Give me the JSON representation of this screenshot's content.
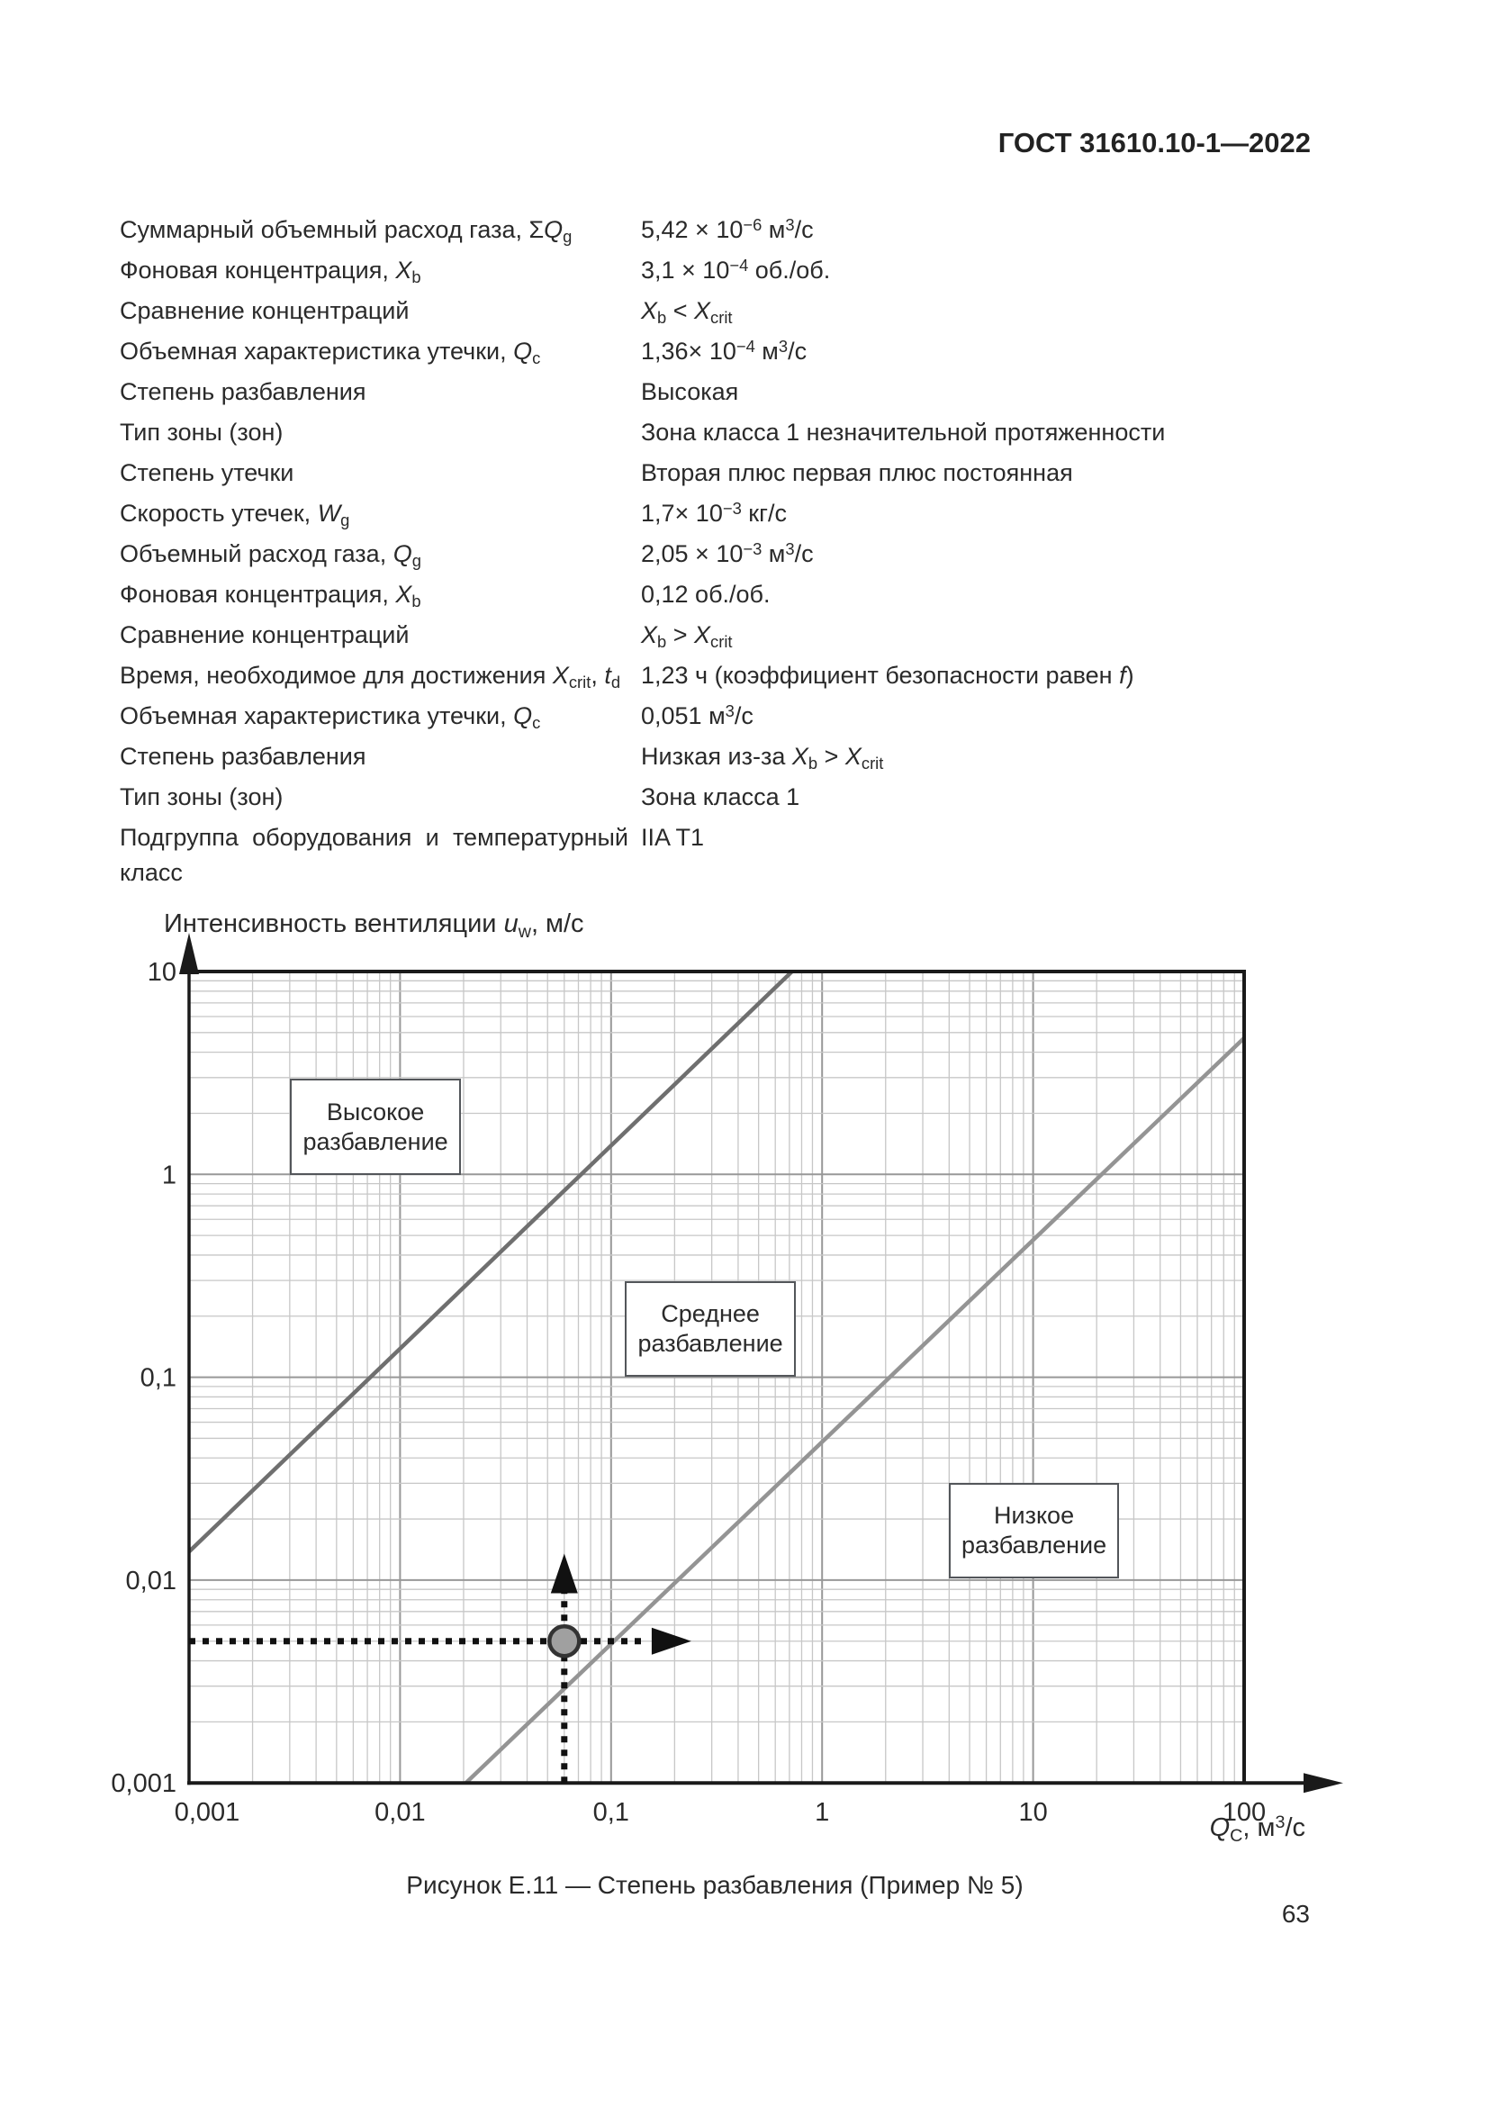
{
  "page": {
    "header": "ГОСТ 31610.10-1—2022",
    "page_number": "63"
  },
  "parameters": [
    {
      "label": "Суммарный объемный расход газа, Σ*Q*_{g}",
      "value": "5,42 × 10^{−6} м^{3}/с"
    },
    {
      "label": "Фоновая концентрация, *X*_{b}",
      "value": "3,1 × 10^{−4} об./об."
    },
    {
      "label": "Сравнение концентраций",
      "value": "*X*_{b} < *X*_{crit}"
    },
    {
      "label": "Объемная характеристика утечки, *Q*_{c}",
      "value": "1,36× 10^{−4} м^{3}/с"
    },
    {
      "label": "Степень разбавления",
      "value": "Высокая"
    },
    {
      "label": "Тип зоны (зон)",
      "value": "Зона класса 1 незначительной протяженности"
    },
    {
      "label": "Степень утечки",
      "value": "Вторая плюс первая плюс постоянная"
    },
    {
      "label": "Скорость утечек, *W*_{g}",
      "value": "1,7× 10^{−3} кг/с"
    },
    {
      "label": "Объемный расход газа, *Q*_{g}",
      "value": "2,05 × 10^{−3} м^{3}/с"
    },
    {
      "label": "Фоновая концентрация, *X*_{b}",
      "value": "0,12 об./об."
    },
    {
      "label": "Сравнение концентраций",
      "value": "*X*_{b} > *X*_{crit}"
    },
    {
      "label": "Время, необходимое для достижения *X*_{crit}, *t*_{d}",
      "value": "1,23 ч (коэффициент безопасности равен *f*)"
    },
    {
      "label": "Объемная характеристика утечки, *Q*_{c}",
      "value": "0,051 м^{3}/с"
    },
    {
      "label": "Степень разбавления",
      "value": "Низкая из-за *X*_{b} > *X*_{crit}"
    },
    {
      "label": "Тип зоны (зон)",
      "value": "Зона класса 1"
    },
    {
      "label": "Подгруппа оборудования и температурный класс",
      "value": "IIA T1"
    }
  ],
  "figure": {
    "caption": "Рисунок Е.11 — Степень разбавления (Пример № 5)",
    "chart_data": {
      "type": "line",
      "scale": "log-log",
      "grid": "on, minor log divisions 2–9 each decade",
      "x_axis": {
        "title": "*Q*_{C}, м^{3}/с",
        "ticks": [
          "0,001",
          "0,01",
          "0,1",
          "1",
          "10",
          "100"
        ],
        "tick_values": [
          0.001,
          0.01,
          0.1,
          1,
          10,
          100
        ],
        "range": [
          0.001,
          100
        ]
      },
      "y_axis": {
        "title": "Интенсивность вентиляции *u*_{w}, м/с",
        "ticks": [
          "10",
          "1",
          "0,1",
          "0,01",
          "0,001"
        ],
        "tick_values": [
          10,
          1,
          0.1,
          0.01,
          0.001
        ],
        "range": [
          0.001,
          10
        ]
      },
      "series": [
        {
          "name": "high-medium-boundary",
          "color": "#6f6f6f",
          "points": [
            [
              0.001,
              0.0138
            ],
            [
              0.72,
              10
            ]
          ]
        },
        {
          "name": "medium-low-boundary",
          "color": "#949494",
          "points": [
            [
              0.0205,
              0.001
            ],
            [
              100,
              4.7
            ]
          ]
        }
      ],
      "zones": [
        {
          "name": "high-dilution",
          "label": "Высокое\nразбавление",
          "rect": {
            "x": [
              0.003,
              0.0195
            ],
            "y": [
              0.99,
              2.95
            ]
          }
        },
        {
          "name": "medium-dilution",
          "label": "Среднее\nразбавление",
          "rect": {
            "x": [
              0.116,
              0.753
            ],
            "y": [
              0.101,
              0.297
            ]
          }
        },
        {
          "name": "low-dilution",
          "label": "Низкое\nразбавление",
          "rect": {
            "x": [
              3.98,
              25.6
            ],
            "y": [
              0.0102,
              0.03
            ]
          }
        }
      ],
      "marker": {
        "x": 0.06,
        "y": 0.005
      },
      "guides": {
        "horizontal": {
          "y": 0.005,
          "from_x": 0.001,
          "to_x": 0.145,
          "arrow_tip_x": 0.24
        },
        "vertical": {
          "x": 0.06,
          "from_y": 0.001,
          "to_y": 0.0095,
          "arrow_tip_y": 0.0135
        }
      },
      "colors": {
        "grid_minor": "#c7c7c7",
        "grid_major": "#989898",
        "axis": "#1a1a1a",
        "guide": "#111111",
        "marker_fill": "#a0a0a0",
        "marker_stroke": "#333333"
      }
    }
  }
}
